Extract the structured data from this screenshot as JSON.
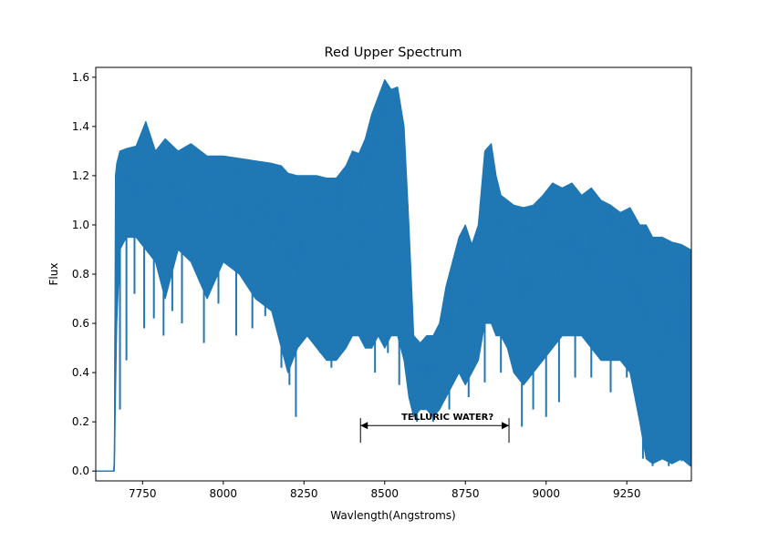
{
  "chart_data": {
    "type": "line",
    "title": "Red Upper Spectrum",
    "xlabel": "Wavlength(Angstroms)",
    "ylabel": "Flux",
    "xlim": [
      7605,
      9450
    ],
    "ylim": [
      -0.04,
      1.64
    ],
    "grid": false,
    "legend": "none",
    "x_ticks": [
      7750,
      8000,
      8250,
      8500,
      8750,
      9000,
      9250
    ],
    "y_ticks": [
      0.0,
      0.2,
      0.4,
      0.6,
      0.8,
      1.0,
      1.2,
      1.4,
      1.6
    ],
    "x_tick_labels": [
      "7750",
      "8000",
      "8250",
      "8500",
      "8750",
      "9000",
      "9250"
    ],
    "y_tick_labels": [
      "0.0",
      "0.2",
      "0.4",
      "0.6",
      "0.8",
      "1.0",
      "1.2",
      "1.4",
      "1.6"
    ],
    "series_color": "#1f77b4",
    "series": [
      {
        "x": [
          7605,
          7660,
          7663,
          7666,
          7670,
          7680,
          7700,
          7730,
          7760,
          7790,
          7820,
          7860,
          7900,
          7950,
          8000,
          8050,
          8100,
          8150,
          8180,
          8200,
          8230,
          8260,
          8290,
          8320,
          8350,
          8380,
          8400,
          8420,
          8440,
          8460,
          8480,
          8500,
          8520,
          8540,
          8560,
          8575,
          8590,
          8610,
          8630,
          8650,
          8670,
          8690,
          8710,
          8730,
          8750,
          8770,
          8790,
          8810,
          8830,
          8845,
          8860,
          8880,
          8900,
          8930,
          8960,
          8990,
          9020,
          9050,
          9080,
          9110,
          9140,
          9170,
          9200,
          9230,
          9260,
          9290,
          9310,
          9330,
          9360,
          9390,
          9420,
          9447
        ],
        "y_max": [
          0.0,
          0.0,
          0.05,
          1.2,
          1.25,
          1.3,
          1.31,
          1.32,
          1.42,
          1.3,
          1.35,
          1.3,
          1.33,
          1.28,
          1.28,
          1.27,
          1.26,
          1.25,
          1.24,
          1.21,
          1.2,
          1.2,
          1.2,
          1.19,
          1.19,
          1.24,
          1.3,
          1.29,
          1.35,
          1.45,
          1.52,
          1.59,
          1.55,
          1.56,
          1.4,
          1.0,
          0.55,
          0.52,
          0.55,
          0.55,
          0.6,
          0.75,
          0.85,
          0.95,
          1.0,
          0.92,
          1.0,
          1.3,
          1.33,
          1.2,
          1.12,
          1.1,
          1.08,
          1.07,
          1.08,
          1.12,
          1.17,
          1.15,
          1.17,
          1.12,
          1.15,
          1.1,
          1.08,
          1.05,
          1.07,
          1.0,
          1.0,
          0.95,
          0.95,
          0.93,
          0.92,
          0.9
        ],
        "y_min": [
          0.0,
          0.0,
          0.02,
          0.3,
          0.6,
          0.9,
          0.95,
          0.95,
          0.9,
          0.85,
          0.7,
          0.9,
          0.85,
          0.7,
          0.85,
          0.8,
          0.7,
          0.65,
          0.5,
          0.4,
          0.5,
          0.55,
          0.5,
          0.45,
          0.45,
          0.5,
          0.55,
          0.55,
          0.5,
          0.5,
          0.55,
          0.5,
          0.55,
          0.55,
          0.45,
          0.3,
          0.22,
          0.25,
          0.25,
          0.22,
          0.25,
          0.3,
          0.35,
          0.4,
          0.35,
          0.4,
          0.45,
          0.6,
          0.6,
          0.55,
          0.55,
          0.5,
          0.4,
          0.35,
          0.4,
          0.45,
          0.5,
          0.55,
          0.55,
          0.55,
          0.5,
          0.45,
          0.45,
          0.45,
          0.4,
          0.2,
          0.05,
          0.03,
          0.05,
          0.03,
          0.05,
          0.02
        ]
      }
    ],
    "deep_lines": [
      {
        "x": 7680,
        "y": 0.25
      },
      {
        "x": 7700,
        "y": 0.45
      },
      {
        "x": 7725,
        "y": 0.72
      },
      {
        "x": 7755,
        "y": 0.58
      },
      {
        "x": 7785,
        "y": 0.62
      },
      {
        "x": 7815,
        "y": 0.55
      },
      {
        "x": 7842,
        "y": 0.65
      },
      {
        "x": 7872,
        "y": 0.6
      },
      {
        "x": 7940,
        "y": 0.52
      },
      {
        "x": 7985,
        "y": 0.68
      },
      {
        "x": 8040,
        "y": 0.55
      },
      {
        "x": 8090,
        "y": 0.58
      },
      {
        "x": 8130,
        "y": 0.63
      },
      {
        "x": 8180,
        "y": 0.42
      },
      {
        "x": 8205,
        "y": 0.35
      },
      {
        "x": 8225,
        "y": 0.22
      },
      {
        "x": 8245,
        "y": 0.6
      },
      {
        "x": 8300,
        "y": 0.48
      },
      {
        "x": 8335,
        "y": 0.42
      },
      {
        "x": 8360,
        "y": 0.62
      },
      {
        "x": 8395,
        "y": 0.54
      },
      {
        "x": 8430,
        "y": 0.63
      },
      {
        "x": 8470,
        "y": 0.4
      },
      {
        "x": 8510,
        "y": 0.48
      },
      {
        "x": 8545,
        "y": 0.35
      },
      {
        "x": 8600,
        "y": 0.2
      },
      {
        "x": 8650,
        "y": 0.2
      },
      {
        "x": 8700,
        "y": 0.25
      },
      {
        "x": 8760,
        "y": 0.3
      },
      {
        "x": 8810,
        "y": 0.36
      },
      {
        "x": 8860,
        "y": 0.4
      },
      {
        "x": 8925,
        "y": 0.18
      },
      {
        "x": 8960,
        "y": 0.25
      },
      {
        "x": 9000,
        "y": 0.22
      },
      {
        "x": 9040,
        "y": 0.28
      },
      {
        "x": 9090,
        "y": 0.38
      },
      {
        "x": 9140,
        "y": 0.38
      },
      {
        "x": 9200,
        "y": 0.32
      },
      {
        "x": 9250,
        "y": 0.38
      },
      {
        "x": 9300,
        "y": 0.05
      },
      {
        "x": 9330,
        "y": 0.02
      },
      {
        "x": 9380,
        "y": 0.02
      },
      {
        "x": 9420,
        "y": 0.04
      }
    ],
    "annotation": {
      "text": "TELLURIC WATER?",
      "x_start": 8425,
      "x_end": 8885,
      "y": 0.185,
      "bracket_top": 0.215,
      "bracket_bottom": 0.115
    }
  }
}
